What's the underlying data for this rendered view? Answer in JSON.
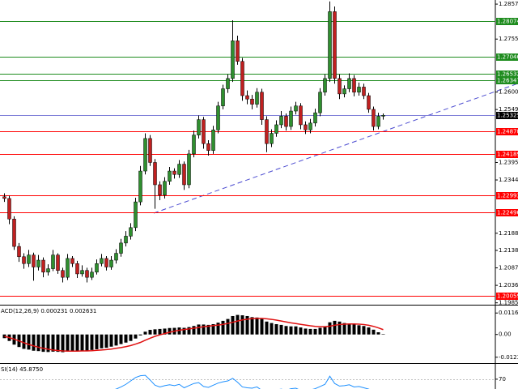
{
  "chart_data": [
    {
      "type": "candlestick",
      "up_color": "#2f8f2f",
      "down_color": "#c02020",
      "ylim": [
        1.198,
        1.2869
      ],
      "yticks": [
        {
          "value": 1.2857,
          "label": "1.28570"
        },
        {
          "value": 1.2755,
          "label": "1.27550"
        },
        1.26005,
        1.25495,
        {
          "value": 1.2395,
          "label": "1.23950"
        },
        {
          "value": 1.2344,
          "label": "1.23440"
        },
        1.21885,
        1.21385,
        1.20875,
        1.20365,
        1.19855
      ],
      "levels": [
        {
          "value": 1.28074,
          "color": "#1e8c1e"
        },
        {
          "value": 1.27046,
          "color": "#1e8c1e"
        },
        {
          "value": 1.26532,
          "color": "#1e8c1e"
        },
        {
          "value": 1.26347,
          "color": "#1e8c1e"
        },
        {
          "value": 1.25325,
          "color": "#8080d8",
          "label_fill": "#000000"
        },
        {
          "value": 1.2487,
          "label": "1.24870",
          "color": "#ff0000"
        },
        {
          "value": 1.24189,
          "color": "#ff0000"
        },
        {
          "value": 1.22993,
          "color": "#ff0000"
        },
        {
          "value": 1.22496,
          "color": "#ff0000"
        },
        {
          "value": 1.20059,
          "color": "#ff0000"
        }
      ],
      "ohlc": [
        [
          1.2295,
          1.2305,
          1.228,
          1.229
        ],
        [
          1.229,
          1.2298,
          1.2215,
          1.223
        ],
        [
          1.223,
          1.2238,
          1.214,
          1.215
        ],
        [
          1.215,
          1.216,
          1.2105,
          1.212
        ],
        [
          1.212,
          1.213,
          1.2085,
          1.21
        ],
        [
          1.21,
          1.214,
          1.209,
          1.2125
        ],
        [
          1.2125,
          1.2132,
          1.205,
          1.209
        ],
        [
          1.209,
          1.2125,
          1.208,
          1.211
        ],
        [
          1.211,
          1.2118,
          1.206,
          1.2075
        ],
        [
          1.2075,
          1.2098,
          1.2065,
          1.2085
        ],
        [
          1.2085,
          1.214,
          1.2078,
          1.2125
        ],
        [
          1.2125,
          1.213,
          1.207,
          1.208
        ],
        [
          1.208,
          1.2088,
          1.2045,
          1.206
        ],
        [
          1.206,
          1.2128,
          1.2052,
          1.2115
        ],
        [
          1.2115,
          1.2122,
          1.209,
          1.21
        ],
        [
          1.21,
          1.2108,
          1.2058,
          1.207
        ],
        [
          1.207,
          1.2095,
          1.2062,
          1.208
        ],
        [
          1.208,
          1.2088,
          1.2045,
          1.206
        ],
        [
          1.206,
          1.2088,
          1.2052,
          1.2075
        ],
        [
          1.2075,
          1.2112,
          1.2068,
          1.21
        ],
        [
          1.21,
          1.2128,
          1.2092,
          1.2115
        ],
        [
          1.2115,
          1.2122,
          1.208,
          1.209
        ],
        [
          1.209,
          1.2122,
          1.2082,
          1.211
        ],
        [
          1.211,
          1.2142,
          1.21,
          1.213
        ],
        [
          1.213,
          1.2172,
          1.212,
          1.216
        ],
        [
          1.216,
          1.2195,
          1.215,
          1.218
        ],
        [
          1.218,
          1.2218,
          1.217,
          1.2205
        ],
        [
          1.2205,
          1.2292,
          1.2195,
          1.228
        ],
        [
          1.228,
          1.2385,
          1.227,
          1.237
        ],
        [
          1.237,
          1.248,
          1.236,
          1.2465
        ],
        [
          1.2465,
          1.2475,
          1.2385,
          1.2395
        ],
        [
          1.2395,
          1.2405,
          1.226,
          1.233
        ],
        [
          1.233,
          1.234,
          1.2285,
          1.23
        ],
        [
          1.23,
          1.2352,
          1.229,
          1.234
        ],
        [
          1.234,
          1.2382,
          1.233,
          1.237
        ],
        [
          1.237,
          1.2378,
          1.2348,
          1.236
        ],
        [
          1.236,
          1.2402,
          1.235,
          1.239
        ],
        [
          1.239,
          1.2398,
          1.2315,
          1.233
        ],
        [
          1.233,
          1.2432,
          1.232,
          1.242
        ],
        [
          1.242,
          1.2488,
          1.241,
          1.2475
        ],
        [
          1.2475,
          1.2532,
          1.2465,
          1.252
        ],
        [
          1.252,
          1.2528,
          1.2435,
          1.245
        ],
        [
          1.245,
          1.246,
          1.2415,
          1.243
        ],
        [
          1.243,
          1.2502,
          1.242,
          1.249
        ],
        [
          1.249,
          1.2572,
          1.248,
          1.256
        ],
        [
          1.256,
          1.2622,
          1.255,
          1.261
        ],
        [
          1.261,
          1.2652,
          1.2598,
          1.264
        ],
        [
          1.264,
          1.281,
          1.263,
          1.275
        ],
        [
          1.275,
          1.2765,
          1.268,
          1.269
        ],
        [
          1.269,
          1.27,
          1.2575,
          1.259
        ],
        [
          1.259,
          1.2605,
          1.2565,
          1.258
        ],
        [
          1.258,
          1.2592,
          1.255,
          1.2565
        ],
        [
          1.2565,
          1.2612,
          1.2555,
          1.26
        ],
        [
          1.26,
          1.261,
          1.2505,
          1.252
        ],
        [
          1.252,
          1.253,
          1.2425,
          1.245
        ],
        [
          1.245,
          1.2492,
          1.244,
          1.248
        ],
        [
          1.248,
          1.2518,
          1.247,
          1.2505
        ],
        [
          1.2505,
          1.2545,
          1.2495,
          1.253
        ],
        [
          1.253,
          1.2538,
          1.2488,
          1.25
        ],
        [
          1.25,
          1.2558,
          1.249,
          1.2545
        ],
        [
          1.2545,
          1.2572,
          1.2535,
          1.256
        ],
        [
          1.256,
          1.2568,
          1.2492,
          1.2505
        ],
        [
          1.2505,
          1.2515,
          1.2478,
          1.249
        ],
        [
          1.249,
          1.2522,
          1.248,
          1.251
        ],
        [
          1.251,
          1.2552,
          1.25,
          1.254
        ],
        [
          1.254,
          1.2612,
          1.253,
          1.26
        ],
        [
          1.26,
          1.2652,
          1.259,
          1.264
        ],
        [
          1.264,
          1.2865,
          1.263,
          1.2835
        ],
        [
          1.2835,
          1.285,
          1.2625,
          1.264
        ],
        [
          1.264,
          1.2652,
          1.258,
          1.2595
        ],
        [
          1.2595,
          1.262,
          1.2585,
          1.261
        ],
        [
          1.261,
          1.2655,
          1.26,
          1.264
        ],
        [
          1.264,
          1.265,
          1.2588,
          1.26
        ],
        [
          1.26,
          1.2628,
          1.259,
          1.2615
        ],
        [
          1.2615,
          1.2625,
          1.258,
          1.259
        ],
        [
          1.259,
          1.2598,
          1.254,
          1.255
        ],
        [
          1.255,
          1.2558,
          1.2488,
          1.25
        ],
        [
          1.25,
          1.254,
          1.2492,
          1.253
        ],
        [
          1.253,
          1.2538,
          1.252,
          1.25325
        ]
      ]
    },
    {
      "type": "macd",
      "title": "ACD(12,26,9) 0.000231 0.002631",
      "histogram_color": "#000000",
      "signal_color": "#e01010",
      "ylim": [
        -0.0155,
        0.0157
      ],
      "yticks": [
        0.011641,
        {
          "value": 0,
          "label": "0.00"
        },
        -0.012345
      ],
      "histogram": [
        -0.002,
        -0.0035,
        -0.0055,
        -0.0068,
        -0.0078,
        -0.0082,
        -0.0088,
        -0.009,
        -0.0094,
        -0.0095,
        -0.0093,
        -0.0094,
        -0.0096,
        -0.0092,
        -0.009,
        -0.009,
        -0.0088,
        -0.0087,
        -0.0084,
        -0.008,
        -0.0075,
        -0.0072,
        -0.0066,
        -0.006,
        -0.0052,
        -0.0044,
        -0.0035,
        -0.0022,
        -0.0005,
        0.0015,
        0.0025,
        0.0028,
        0.003,
        0.0032,
        0.0035,
        0.0036,
        0.0038,
        0.0036,
        0.004,
        0.0046,
        0.0054,
        0.0054,
        0.0052,
        0.0056,
        0.0064,
        0.0074,
        0.0084,
        0.01,
        0.0106,
        0.0104,
        0.01,
        0.0094,
        0.0092,
        0.0084,
        0.007,
        0.0062,
        0.0056,
        0.0052,
        0.0046,
        0.0044,
        0.0044,
        0.0038,
        0.0032,
        0.003,
        0.003,
        0.0036,
        0.0044,
        0.0066,
        0.0074,
        0.007,
        0.0062,
        0.0058,
        0.0056,
        0.005,
        0.0046,
        0.0038,
        0.0026,
        0.0012,
        0.000231
      ],
      "signal": [
        -0.001,
        -0.0017,
        -0.0025,
        -0.0035,
        -0.0045,
        -0.0054,
        -0.0062,
        -0.0069,
        -0.0075,
        -0.008,
        -0.0084,
        -0.0087,
        -0.0089,
        -0.009,
        -0.009,
        -0.009,
        -0.0089,
        -0.0089,
        -0.0088,
        -0.0086,
        -0.0084,
        -0.0082,
        -0.0079,
        -0.0075,
        -0.0071,
        -0.0066,
        -0.006,
        -0.0052,
        -0.0043,
        -0.0031,
        -0.002,
        -0.001,
        -0.0002,
        0.0005,
        0.0012,
        0.0018,
        0.0023,
        0.0027,
        0.003,
        0.0034,
        0.0038,
        0.0042,
        0.0045,
        0.0048,
        0.0051,
        0.0055,
        0.006,
        0.0066,
        0.0073,
        0.0079,
        0.0083,
        0.0086,
        0.0087,
        0.0087,
        0.0085,
        0.0082,
        0.0078,
        0.0073,
        0.0068,
        0.0063,
        0.0059,
        0.0055,
        0.0051,
        0.0047,
        0.0044,
        0.0042,
        0.0042,
        0.0045,
        0.005,
        0.0054,
        0.0056,
        0.0057,
        0.0057,
        0.0056,
        0.0054,
        0.005,
        0.0044,
        0.0036,
        0.002631
      ]
    },
    {
      "type": "line",
      "title": "SI(14) 45.8750",
      "color": "#1e90ff",
      "ylim": [
        0,
        100
      ],
      "yticks": [
        70
      ],
      "values": [
        40,
        35,
        30,
        28,
        27,
        32,
        28,
        33,
        30,
        32,
        38,
        33,
        31,
        40,
        38,
        34,
        36,
        33,
        37,
        42,
        44,
        40,
        44,
        47,
        52,
        58,
        66,
        74,
        78,
        79,
        68,
        56,
        52,
        55,
        57,
        55,
        58,
        50,
        55,
        60,
        62,
        53,
        51,
        56,
        61,
        64,
        66,
        72,
        63,
        52,
        50,
        49,
        52,
        44,
        38,
        42,
        45,
        47,
        44,
        48,
        49,
        44,
        43,
        45,
        48,
        53,
        58,
        77,
        60,
        54,
        55,
        57,
        52,
        53,
        50,
        47,
        42,
        46,
        45.875
      ]
    }
  ]
}
